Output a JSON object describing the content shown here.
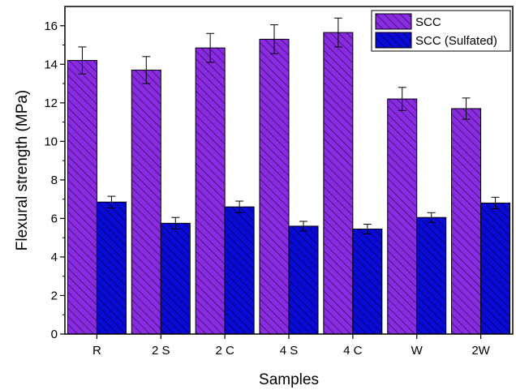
{
  "chart_data": {
    "type": "bar",
    "title": "",
    "xlabel": "Samples",
    "ylabel": "Flexural strength (MPa)",
    "categories": [
      "R",
      "2 S",
      "2 C",
      "4 S",
      "4 C",
      "W",
      "2W"
    ],
    "ylim": [
      0,
      17
    ],
    "yticks": [
      "0",
      "2",
      "4",
      "6",
      "8",
      "10",
      "12",
      "14",
      "16"
    ],
    "grid": false,
    "legend_position": "top-right",
    "series": [
      {
        "name": "SCC",
        "color": "#8a2be2",
        "hatch_color": "#2a0a55",
        "values": [
          14.2,
          13.7,
          14.85,
          15.3,
          15.65,
          12.2,
          11.7
        ],
        "errors": [
          0.7,
          0.7,
          0.75,
          0.75,
          0.75,
          0.6,
          0.55
        ]
      },
      {
        "name": "SCC (Sulfated)",
        "color": "#0a0ad6",
        "hatch_color": "#00004a",
        "values": [
          6.85,
          5.75,
          6.6,
          5.6,
          5.45,
          6.05,
          6.8
        ],
        "errors": [
          0.3,
          0.3,
          0.3,
          0.25,
          0.25,
          0.25,
          0.3
        ]
      }
    ]
  }
}
